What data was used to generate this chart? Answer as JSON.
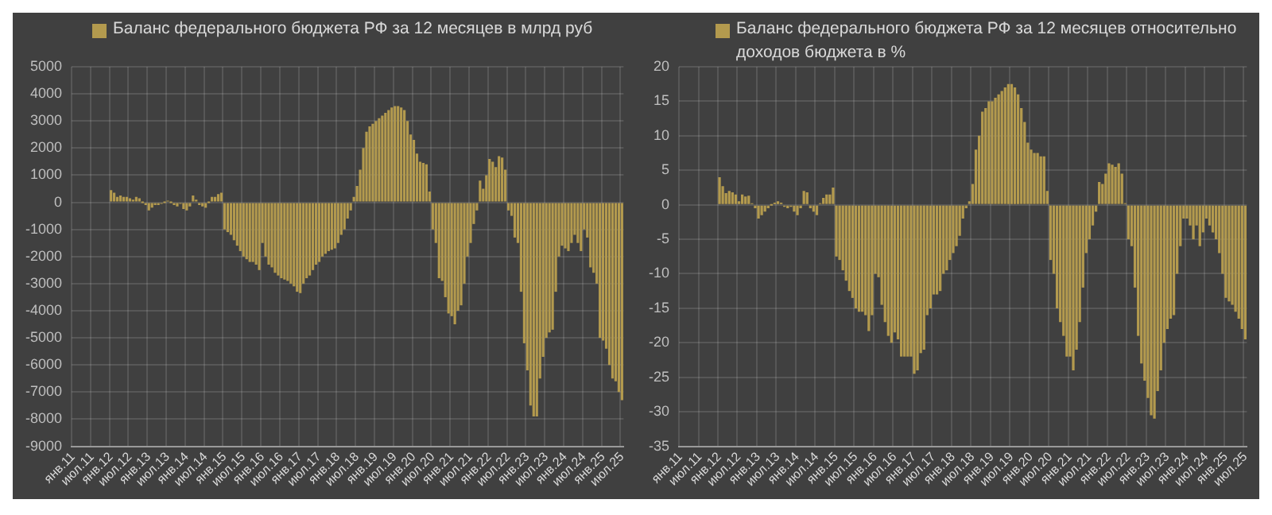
{
  "chart_data": [
    {
      "type": "bar",
      "categories": [
        "янв.11",
        null,
        null,
        null,
        null,
        null,
        "июл.11",
        null,
        null,
        null,
        null,
        null,
        "янв.12",
        null,
        null,
        null,
        null,
        null,
        "июл.12",
        null,
        null,
        null,
        null,
        null,
        "янв.13",
        null,
        null,
        null,
        null,
        null,
        "июл.13",
        null,
        null,
        null,
        null,
        null,
        "янв.14",
        null,
        null,
        null,
        null,
        null,
        "июл.14",
        null,
        null,
        null,
        null,
        null,
        "янв.15",
        null,
        null,
        null,
        null,
        null,
        "июл.15",
        null,
        null,
        null,
        null,
        null,
        "янв.16",
        null,
        null,
        null,
        null,
        null,
        "июл.16",
        null,
        null,
        null,
        null,
        null,
        "янв.17",
        null,
        null,
        null,
        null,
        null,
        "июл.17",
        null,
        null,
        null,
        null,
        null,
        "янв.18",
        null,
        null,
        null,
        null,
        null,
        "июл.18",
        null,
        null,
        null,
        null,
        null,
        "янв.19",
        null,
        null,
        null,
        null,
        null,
        "июл.19",
        null,
        null,
        null,
        null,
        null,
        "янв.20",
        null,
        null,
        null,
        null,
        null,
        "июл.20",
        null,
        null,
        null,
        null,
        null,
        "янв.21",
        null,
        null,
        null,
        null,
        null,
        "июл.21",
        null,
        null,
        null,
        null,
        null,
        "янв.22",
        null,
        null,
        null,
        null,
        null,
        "июл.22",
        null,
        null,
        null,
        null,
        null,
        "янв.23",
        null,
        null,
        null,
        null,
        null,
        "июл.23",
        null,
        null,
        null,
        null,
        null,
        "янв.24",
        null,
        null,
        null,
        null,
        null,
        "июл.24",
        null,
        null,
        null,
        null,
        null,
        "янв.25",
        null,
        null,
        null,
        null,
        null,
        "июл.25"
      ],
      "series": [
        {
          "name": "Баланс федерального бюджета РФ за 12 месяцев в млрд руб",
          "color": "#b39a4e",
          "values": [
            null,
            null,
            null,
            null,
            null,
            null,
            null,
            null,
            null,
            null,
            null,
            null,
            450,
            350,
            200,
            250,
            200,
            200,
            150,
            100,
            200,
            150,
            0,
            -100,
            -300,
            -200,
            -100,
            -100,
            -50,
            0,
            50,
            0,
            -100,
            -150,
            -50,
            -250,
            -300,
            -150,
            250,
            100,
            -100,
            -150,
            -200,
            0,
            200,
            200,
            300,
            350,
            -1000,
            -1100,
            -1200,
            -1400,
            -1600,
            -1800,
            -2000,
            -2100,
            -2200,
            -2200,
            -2300,
            -2500,
            -1500,
            -2000,
            -2300,
            -2400,
            -2600,
            -2700,
            -2800,
            -2850,
            -2900,
            -3000,
            -3100,
            -3300,
            -3350,
            -3000,
            -2800,
            -2700,
            -2500,
            -2300,
            -2200,
            -2000,
            -1900,
            -1800,
            -1750,
            -1700,
            -1500,
            -1200,
            -1000,
            -600,
            -300,
            200,
            600,
            1200,
            2000,
            2600,
            2800,
            2900,
            3000,
            3100,
            3200,
            3300,
            3400,
            3500,
            3550,
            3550,
            3500,
            3400,
            3000,
            2500,
            2300,
            1800,
            1500,
            1450,
            1400,
            400,
            -1000,
            -1500,
            -2800,
            -2900,
            -3500,
            -4100,
            -4200,
            -4500,
            -4000,
            -3800,
            -3000,
            -2000,
            -1500,
            -800,
            -300,
            800,
            500,
            1000,
            1600,
            1500,
            1300,
            1700,
            1650,
            1200,
            -300,
            -500,
            -1300,
            -1500,
            -3300,
            -5200,
            -6200,
            -7500,
            -7900,
            -7900,
            -6500,
            -5700,
            -5000,
            -4800,
            -4700,
            -3300,
            -2000,
            -1600,
            -1700,
            -1800,
            -1500,
            -1200,
            -1500,
            -1800,
            -1000,
            -1300,
            -2400,
            -2600,
            -3000,
            -5000,
            -5100,
            -5400,
            -6000,
            -6500,
            -6600,
            -7000,
            -7300
          ]
        }
      ],
      "ylim": [
        -9000,
        5000
      ],
      "yticks": [
        -9000,
        -8000,
        -7000,
        -6000,
        -5000,
        -4000,
        -3000,
        -2000,
        -1000,
        0,
        1000,
        2000,
        3000,
        4000,
        5000
      ],
      "grid": true,
      "legend": "top left"
    },
    {
      "type": "bar",
      "categories": [
        "янв.11",
        null,
        null,
        null,
        null,
        null,
        "июл.11",
        null,
        null,
        null,
        null,
        null,
        "янв.12",
        null,
        null,
        null,
        null,
        null,
        "июл.12",
        null,
        null,
        null,
        null,
        null,
        "янв.13",
        null,
        null,
        null,
        null,
        null,
        "июл.13",
        null,
        null,
        null,
        null,
        null,
        "янв.14",
        null,
        null,
        null,
        null,
        null,
        "июл.14",
        null,
        null,
        null,
        null,
        null,
        "янв.15",
        null,
        null,
        null,
        null,
        null,
        "июл.15",
        null,
        null,
        null,
        null,
        null,
        "янв.16",
        null,
        null,
        null,
        null,
        null,
        "июл.16",
        null,
        null,
        null,
        null,
        null,
        "янв.17",
        null,
        null,
        null,
        null,
        null,
        "июл.17",
        null,
        null,
        null,
        null,
        null,
        "янв.18",
        null,
        null,
        null,
        null,
        null,
        "июл.18",
        null,
        null,
        null,
        null,
        null,
        "янв.19",
        null,
        null,
        null,
        null,
        null,
        "июл.19",
        null,
        null,
        null,
        null,
        null,
        "янв.20",
        null,
        null,
        null,
        null,
        null,
        "июл.20",
        null,
        null,
        null,
        null,
        null,
        "янв.21",
        null,
        null,
        null,
        null,
        null,
        "июл.21",
        null,
        null,
        null,
        null,
        null,
        "янв.22",
        null,
        null,
        null,
        null,
        null,
        "июл.22",
        null,
        null,
        null,
        null,
        null,
        "янв.23",
        null,
        null,
        null,
        null,
        null,
        "июл.23",
        null,
        null,
        null,
        null,
        null,
        "янв.24",
        null,
        null,
        null,
        null,
        null,
        "июл.24",
        null,
        null,
        null,
        null,
        null,
        "янв.25",
        null,
        null,
        null,
        null,
        null,
        "июл.25"
      ],
      "series": [
        {
          "name": "Баланс федерального бюджета РФ за 12 месяцев относительно доходов бюджета в %",
          "color": "#b39a4e",
          "values": [
            null,
            null,
            null,
            null,
            null,
            null,
            null,
            null,
            null,
            null,
            null,
            null,
            4,
            2.7,
            1.7,
            2,
            1.8,
            1.5,
            0.5,
            1.5,
            1.2,
            1.3,
            0.1,
            -0.5,
            -2,
            -1.5,
            -1,
            -0.5,
            0,
            0.3,
            0.5,
            0.3,
            -0.3,
            -0.5,
            -0.3,
            -1,
            -1.5,
            -0.5,
            2,
            1.8,
            -0.5,
            -1,
            -1.5,
            0.1,
            1,
            1.5,
            1.5,
            2.5,
            -7.5,
            -8,
            -9.5,
            -11,
            -12.5,
            -13.5,
            -15,
            -15.5,
            -15.5,
            -16,
            -18.3,
            -16,
            -10,
            -10.5,
            -14.5,
            -17,
            -19,
            -20,
            -18.5,
            -19.5,
            -22,
            -22,
            -22,
            -22,
            -24.5,
            -24,
            -21.5,
            -21,
            -16,
            -15,
            -13,
            -13,
            -12.5,
            -10,
            -9.5,
            -8,
            -7,
            -6,
            -4.5,
            -2,
            -0.5,
            0.5,
            3,
            8,
            10,
            13.5,
            14,
            15,
            15,
            15.5,
            16,
            16.5,
            17,
            17.5,
            17.5,
            17,
            16,
            14,
            12,
            9,
            8,
            7.5,
            7.5,
            7,
            7,
            2,
            -8,
            -10,
            -15,
            -17,
            -19,
            -22,
            -22,
            -24,
            -21,
            -17,
            -12,
            -7,
            -5,
            -3,
            -1,
            3.3,
            3,
            4.5,
            6,
            5.8,
            5.5,
            6,
            4.5,
            0.2,
            -5,
            -6,
            -12,
            -19,
            -23,
            -25.5,
            -28,
            -30.5,
            -31,
            -27,
            -24,
            -20,
            -18,
            -16.5,
            -16,
            -10,
            -6,
            -2,
            -2,
            -3,
            -5,
            -3,
            -6,
            -4,
            -2,
            -3,
            -4,
            -5,
            -7,
            -10,
            -13.5,
            -14,
            -14.5,
            -15.5,
            -16.5,
            -18,
            -19.5
          ]
        }
      ],
      "ylim": [
        -35,
        20
      ],
      "yticks": [
        -35,
        -30,
        -25,
        -20,
        -15,
        -10,
        -5,
        0,
        5,
        10,
        15,
        20
      ],
      "grid": true,
      "legend": "top left"
    }
  ]
}
